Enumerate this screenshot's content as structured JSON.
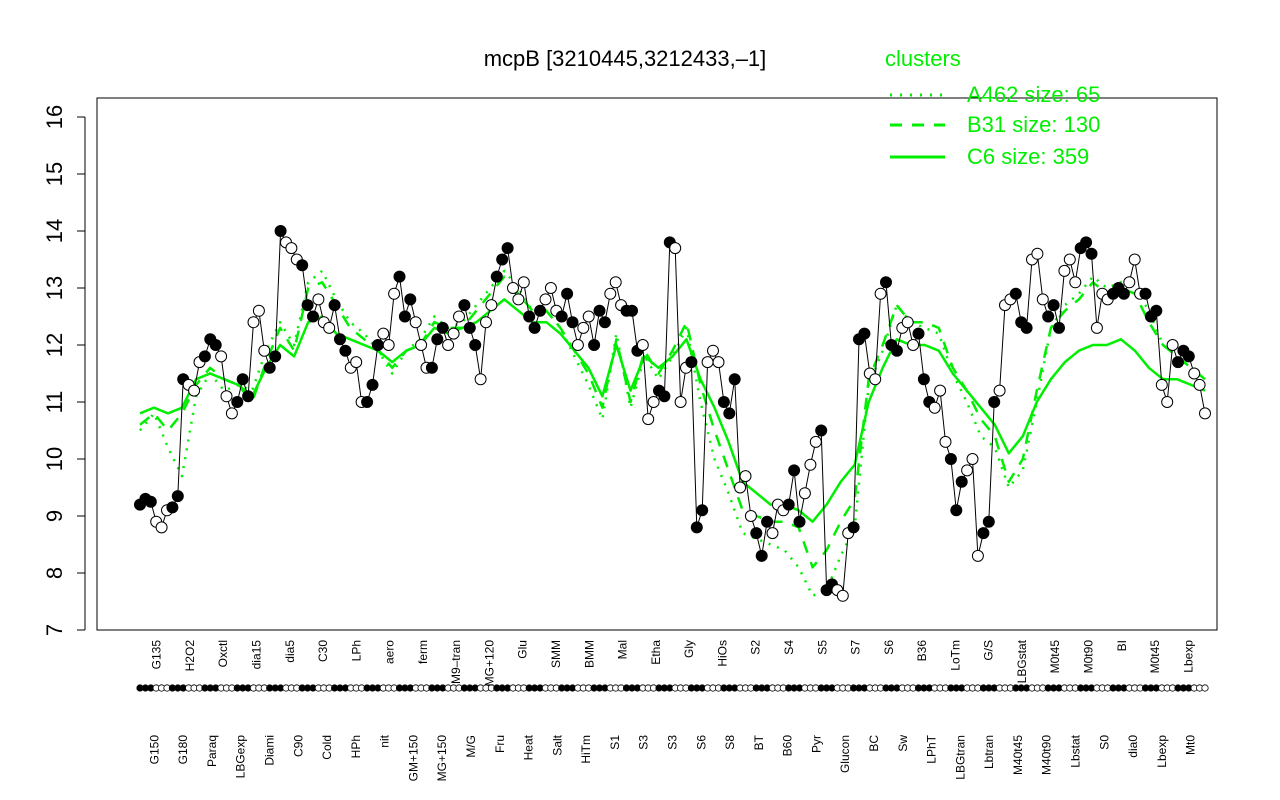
{
  "chart_data": {
    "type": "line",
    "title": "mcpB [3210445,3212433,–1]",
    "ylim": [
      7,
      16
    ],
    "yticks": [
      7,
      8,
      9,
      10,
      11,
      12,
      13,
      14,
      15,
      16
    ],
    "grid": false,
    "legend": {
      "title": "clusters",
      "placement": "top-right",
      "entries": [
        {
          "label": "A462 size: 65",
          "style": "dotted"
        },
        {
          "label": "B31 size: 130",
          "style": "dashed"
        },
        {
          "label": "C6 size: 359",
          "style": "solid"
        }
      ]
    },
    "categories_top": [
      "G135",
      "H2O2",
      "Oxctl",
      "dia15",
      "dia5",
      "C30",
      "LPh",
      "aero",
      "ferm",
      "M9–tran",
      "MG+120",
      "Glu",
      "SMM",
      "BMM",
      "Mal",
      "Etha",
      "Gly",
      "HiOs",
      "S2",
      "S4",
      "S5",
      "S7",
      "S6",
      "B36",
      "LoTm",
      "G/S",
      "LBGstat",
      "M0t45",
      "M0t90",
      "BI",
      "M0t45",
      "Lbexp"
    ],
    "categories_bottom": [
      "G150",
      "G180",
      "Paraq",
      "LBGexp",
      "Diami",
      "C90",
      "Cold",
      "HPh",
      "nit",
      "GM+150",
      "MG+150",
      "M/G",
      "Fru",
      "Heat",
      "Salt",
      "HiTm",
      "S1",
      "S3",
      "S3",
      "S6",
      "S8",
      "BT",
      "B60",
      "Pyr",
      "Glucon",
      "BC",
      "Sw",
      "LPhT",
      "LBGtran",
      "Lbtran",
      "M40t45",
      "M40t90",
      "Lbstat",
      "S0",
      "dia0",
      "Lbexp",
      "Mt0"
    ],
    "profile": {
      "name": "mcpB",
      "values": [
        9.2,
        9.3,
        9.25,
        8.9,
        8.8,
        9.1,
        9.15,
        9.35,
        11.4,
        11.3,
        11.2,
        11.7,
        11.8,
        12.1,
        12.0,
        11.8,
        11.1,
        10.8,
        11.0,
        11.4,
        11.1,
        12.4,
        12.6,
        11.9,
        11.6,
        11.8,
        14.0,
        13.8,
        13.7,
        13.5,
        13.4,
        12.7,
        12.5,
        12.8,
        12.4,
        12.3,
        12.7,
        12.1,
        11.9,
        11.6,
        11.7,
        11.0,
        11.0,
        11.3,
        12.0,
        12.2,
        12.0,
        12.9,
        13.2,
        12.5,
        12.8,
        12.4,
        12.0,
        11.6,
        11.6,
        12.1,
        12.3,
        12.0,
        12.2,
        12.5,
        12.7,
        12.3,
        12.0,
        11.4,
        12.4,
        12.7,
        13.2,
        13.5,
        13.7,
        13.0,
        12.8,
        13.1,
        12.5,
        12.3,
        12.6,
        12.8,
        13.0,
        12.6,
        12.5,
        12.9,
        12.4,
        12.0,
        12.3,
        12.5,
        12.0,
        12.6,
        12.4,
        12.9,
        13.1,
        12.7,
        12.6,
        12.6,
        11.9,
        12.0,
        10.7,
        11.0,
        11.2,
        11.1,
        13.8,
        13.7,
        11.0,
        11.6,
        11.7,
        8.8,
        9.1,
        11.7,
        11.9,
        11.7,
        11.0,
        10.8,
        11.4,
        9.5,
        9.7,
        9.0,
        8.7,
        8.3,
        8.9,
        8.7,
        9.2,
        9.1,
        9.2,
        9.8,
        8.9,
        9.4,
        9.9,
        10.3,
        10.5,
        7.7,
        7.8,
        7.7,
        7.6,
        8.7,
        8.8,
        12.1,
        12.2,
        11.5,
        11.4,
        12.9,
        13.1,
        12.0,
        11.9,
        12.3,
        12.4,
        12.0,
        12.2,
        11.4,
        11.0,
        10.9,
        11.2,
        10.3,
        10.0,
        9.1,
        9.6,
        9.8,
        10.0,
        8.3,
        8.7,
        8.9,
        11.0,
        11.2,
        12.7,
        12.8,
        12.9,
        12.4,
        12.3,
        13.5,
        13.6,
        12.8,
        12.5,
        12.7,
        12.3,
        13.3,
        13.5,
        13.1,
        13.7,
        13.8,
        13.6,
        12.3,
        12.9,
        12.8,
        12.9,
        13.0,
        12.9,
        13.1,
        13.5,
        12.9,
        12.9,
        12.5,
        12.6,
        11.3,
        11.0,
        12.0,
        11.7,
        11.9,
        11.8,
        11.5,
        11.3,
        10.8
      ]
    },
    "clusters": [
      {
        "name": "A462 size: 65",
        "values": [
          10.5,
          10.8,
          10.2,
          9.7,
          11.1,
          11.5,
          11.2,
          11.3,
          11.2,
          11.9,
          12.4,
          12.0,
          13.1,
          13.3,
          12.8,
          12.4,
          12.2,
          11.9,
          11.5,
          11.9,
          12.1,
          12.5,
          12.3,
          12.4,
          12.7,
          13.0,
          13.3,
          13.0,
          12.6,
          12.6,
          12.3,
          11.8,
          11.3,
          10.7,
          12.2,
          10.9,
          11.8,
          11.4,
          11.8,
          12.3,
          11.0,
          10.0,
          9.4,
          8.7,
          8.6,
          8.5,
          8.4,
          8.1,
          7.6,
          7.7,
          8.3,
          8.8,
          11.3,
          11.9,
          12.7,
          12.4,
          12.3,
          12.2,
          11.5,
          11.0,
          10.4,
          10.2,
          9.5,
          9.8,
          11.0,
          12.3,
          12.7,
          12.9,
          13.2,
          13.0,
          13.1,
          13.0,
          12.6,
          12.0,
          11.8,
          11.6,
          11.4
        ]
      },
      {
        "name": "B31 size: 130",
        "values": [
          10.6,
          10.8,
          10.5,
          10.8,
          11.3,
          11.6,
          11.4,
          11.3,
          11.0,
          11.7,
          12.3,
          11.9,
          13.0,
          13.1,
          12.7,
          12.3,
          12.1,
          11.9,
          11.6,
          11.9,
          12.0,
          12.4,
          12.3,
          12.3,
          12.6,
          12.9,
          13.2,
          12.9,
          12.6,
          12.6,
          12.3,
          11.9,
          11.5,
          10.9,
          12.1,
          11.0,
          11.9,
          11.5,
          11.9,
          12.4,
          11.3,
          10.5,
          9.8,
          9.1,
          9.0,
          8.9,
          8.9,
          8.8,
          8.1,
          8.4,
          8.9,
          9.3,
          11.4,
          12.0,
          12.7,
          12.4,
          12.4,
          12.3,
          11.6,
          11.2,
          10.7,
          10.4,
          9.6,
          10.0,
          11.2,
          12.3,
          12.6,
          12.8,
          13.1,
          12.9,
          13.0,
          12.9,
          12.4,
          12.0,
          11.8,
          11.6,
          11.4
        ]
      },
      {
        "name": "C6 size: 359",
        "values": [
          10.8,
          10.9,
          10.8,
          10.9,
          11.4,
          11.5,
          11.4,
          11.3,
          11.1,
          11.6,
          12.0,
          11.8,
          12.4,
          12.5,
          12.2,
          12.1,
          12.0,
          11.9,
          11.7,
          11.9,
          12.0,
          12.3,
          12.2,
          12.3,
          12.4,
          12.6,
          12.8,
          12.6,
          12.4,
          12.4,
          12.2,
          11.9,
          11.6,
          11.1,
          12.0,
          11.2,
          11.8,
          11.6,
          11.8,
          12.1,
          11.4,
          10.9,
          10.3,
          9.6,
          9.4,
          9.2,
          9.2,
          9.1,
          8.9,
          9.2,
          9.6,
          9.9,
          11.0,
          11.6,
          12.1,
          12.0,
          12.0,
          11.9,
          11.5,
          11.2,
          10.9,
          10.6,
          10.1,
          10.4,
          11.0,
          11.4,
          11.7,
          11.9,
          12.0,
          12.0,
          12.1,
          11.9,
          11.6,
          11.4,
          11.4,
          11.3,
          11.2
        ]
      }
    ],
    "highlight_color": "#00ee00"
  }
}
